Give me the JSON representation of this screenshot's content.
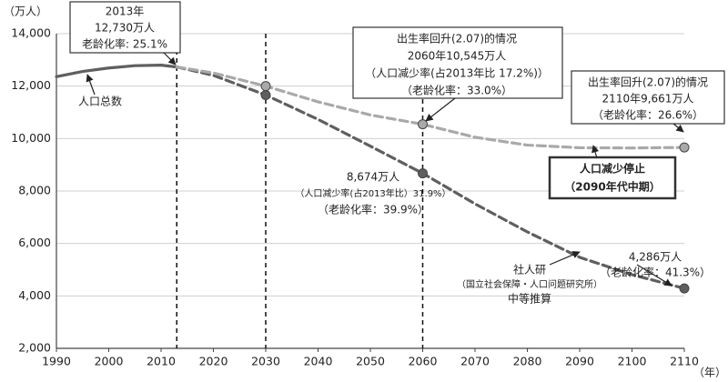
{
  "chart_data": {
    "type": "line",
    "y_unit": "（万人）",
    "x_unit": "（年）",
    "x": [
      1990,
      1995,
      2000,
      2005,
      2010,
      2013,
      2020,
      2030,
      2040,
      2050,
      2060,
      2070,
      2080,
      2090,
      2100,
      2110
    ],
    "xlim": [
      1990,
      2110
    ],
    "xticks": [
      1990,
      2000,
      2010,
      2020,
      2030,
      2040,
      2050,
      2060,
      2070,
      2080,
      2090,
      2100,
      2110
    ],
    "ylim": [
      2000,
      14000
    ],
    "yticks": [
      {
        "value": 2000,
        "label": "2,000"
      },
      {
        "value": 4000,
        "label": "4,000"
      },
      {
        "value": 6000,
        "label": "6,000"
      },
      {
        "value": 8000,
        "label": "8,000"
      },
      {
        "value": 10000,
        "label": "10,000"
      },
      {
        "value": 12000,
        "label": "12,000"
      },
      {
        "value": 14000,
        "label": "14,000"
      }
    ],
    "grid": true,
    "vlines": [
      2013,
      2030,
      2060
    ],
    "series": [
      {
        "name": "人口总数",
        "color": "#5f5f5f",
        "dashed": false,
        "markers": false,
        "values": [
          12360,
          12560,
          12690,
          12780,
          12800,
          12730,
          null,
          null,
          null,
          null,
          null,
          null,
          null,
          null,
          null,
          null
        ]
      },
      {
        "name": "社人研中等推算",
        "color": "#5f5f5f",
        "dashed": true,
        "markers": true,
        "values": [
          null,
          null,
          null,
          null,
          null,
          12730,
          12410,
          11660,
          10730,
          9710,
          8674,
          7510,
          6440,
          5470,
          4810,
          4286
        ]
      },
      {
        "name": "出生率回升(2.07)的情况",
        "color": "#a9a9a9",
        "dashed": true,
        "markers": true,
        "values": [
          null,
          null,
          null,
          null,
          null,
          12730,
          12500,
          12000,
          11400,
          10900,
          10545,
          10050,
          9750,
          9650,
          9640,
          9661
        ]
      }
    ],
    "annotations": [
      {
        "box": "thin",
        "lines": [
          "2013年",
          "12,730万人",
          "老龄化率: 25.1%"
        ]
      },
      {
        "box": "thin",
        "lines": [
          "出生率回升(2.07)的情况",
          "2060年10,545万人",
          "（人口减少率(占2013年比 17.2%)）",
          "（老龄化率：33.0%）"
        ]
      },
      {
        "box": "thin",
        "lines": [
          "出生率回升(2.07)的情况",
          "2110年9,661万人",
          "（老龄化率：26.6%）"
        ]
      },
      {
        "box": "thick",
        "lines": [
          "人口减少停止",
          "（2090年代中期）"
        ]
      },
      {
        "box": "none",
        "lines": [
          "8,674万人",
          "（人口减少率(占2013年比）31.9%）",
          "（老龄化率：39.9%）"
        ]
      },
      {
        "box": "none",
        "lines": [
          "4,286万人",
          "（老龄化率：41.3%）"
        ]
      },
      {
        "box": "none",
        "lines": [
          "社人研",
          "（国立社会保障・人口问题研究所）",
          "中等推算"
        ]
      },
      {
        "box": "none",
        "lines": [
          "人口总数"
        ]
      }
    ]
  }
}
